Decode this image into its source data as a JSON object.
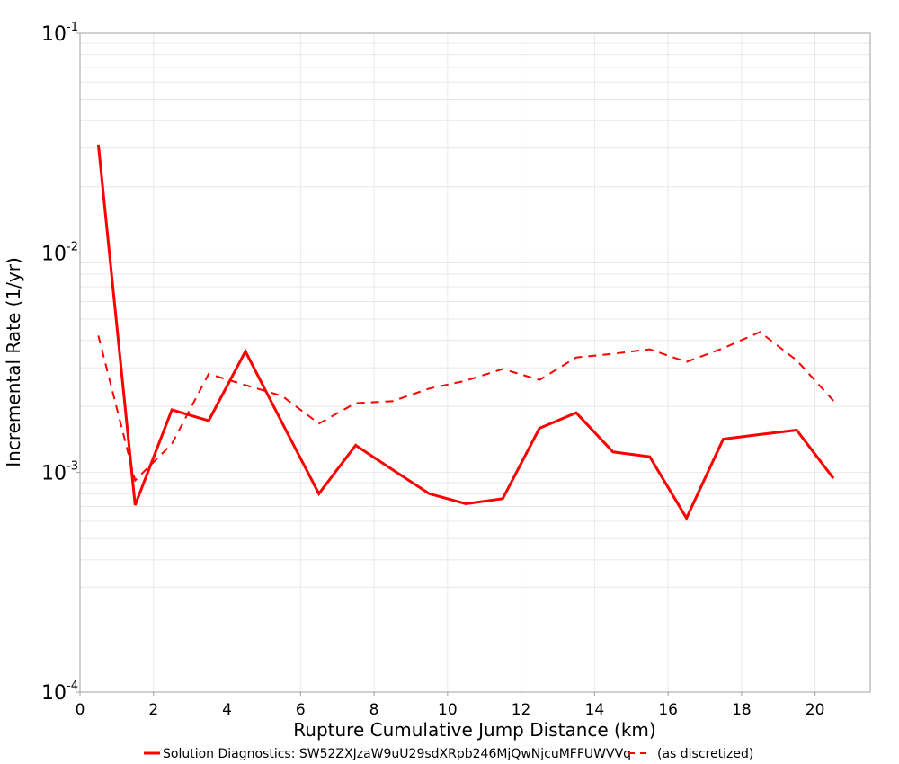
{
  "chart_data": {
    "type": "line",
    "title": "",
    "xlabel": "Rupture Cumulative Jump Distance (km)",
    "ylabel": "Incremental Rate (1/yr)",
    "yscale": "log",
    "xlim": [
      0,
      21.5
    ],
    "ylim": [
      0.0001,
      0.1
    ],
    "grid": true,
    "legend_position": "bottom",
    "x_ticks": [
      0,
      2,
      4,
      6,
      8,
      10,
      12,
      14,
      16,
      18,
      20
    ],
    "y_ticks": [
      {
        "value": 0.1,
        "base": "10",
        "exp": "-1"
      },
      {
        "value": 0.01,
        "base": "10",
        "exp": "-2"
      },
      {
        "value": 0.001,
        "base": "10",
        "exp": "-3"
      },
      {
        "value": 0.0001,
        "base": "10",
        "exp": "-4"
      }
    ],
    "x": [
      0.5,
      1.5,
      2.5,
      3.5,
      4.5,
      5.5,
      6.5,
      7.5,
      8.5,
      9.5,
      10.5,
      11.5,
      12.5,
      13.5,
      14.5,
      15.5,
      16.5,
      17.5,
      18.5,
      19.5,
      20.5
    ],
    "series": [
      {
        "name": "Solution Diagnostics: SW52ZXJzaW9uU29sdXRpb246MjQwNjcuMFFUWVVq",
        "style": "solid",
        "color": "#ff0000",
        "values": [
          0.0311,
          0.00071,
          0.00193,
          0.00172,
          0.00356,
          0.00168,
          0.0008,
          0.00133,
          0.00103,
          0.0008,
          0.00072,
          0.00076,
          0.00159,
          0.00187,
          0.00124,
          0.00118,
          0.00062,
          0.00142,
          0.00149,
          0.00156,
          0.00094
        ]
      },
      {
        "name": "(as discretized)",
        "style": "dashed",
        "color": "#ff0000",
        "values": [
          0.0042,
          0.00092,
          0.00135,
          0.00281,
          0.0025,
          0.00223,
          0.00167,
          0.00207,
          0.00211,
          0.00241,
          0.00262,
          0.00296,
          0.00264,
          0.00334,
          0.00347,
          0.00364,
          0.00319,
          0.00368,
          0.00436,
          0.00324,
          0.00212
        ]
      }
    ]
  },
  "legend": {
    "items": [
      {
        "label": "Solution Diagnostics: SW52ZXJzaW9uU29sdXRpb246MjQwNjcuMFFUWVVq",
        "style": "solid"
      },
      {
        "label": "(as discretized)",
        "style": "dashed"
      }
    ]
  }
}
